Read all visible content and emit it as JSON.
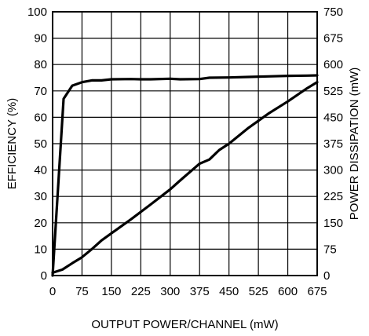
{
  "chart_data": {
    "type": "line",
    "title": "",
    "xlabel": "OUTPUT POWER/CHANNEL (mW)",
    "ylabel": "EFFICIENCY (%)",
    "y2label": "POWER DISSIPATION (mW)",
    "xlim": [
      0,
      675
    ],
    "ylim": [
      0,
      100
    ],
    "y2lim": [
      0,
      750
    ],
    "grid": true,
    "xticks": [
      "0",
      "75",
      "150",
      "225",
      "300",
      "375",
      "450",
      "525",
      "600",
      "675"
    ],
    "yticks": [
      "0",
      "10",
      "20",
      "30",
      "40",
      "50",
      "60",
      "70",
      "80",
      "90",
      "100"
    ],
    "y2ticks": [
      "0",
      "75",
      "150",
      "225",
      "300",
      "375",
      "450",
      "525",
      "600",
      "675",
      "750"
    ],
    "series": [
      {
        "axis": "left",
        "x": [
          0,
          28,
          50,
          75,
          100,
          125,
          150,
          200,
          225,
          250,
          300,
          325,
          375,
          400,
          450,
          500,
          550,
          600,
          650,
          675
        ],
        "y": [
          0,
          67,
          72,
          73.3,
          74,
          74,
          74.4,
          74.5,
          74.4,
          74.4,
          74.6,
          74.4,
          74.5,
          75,
          75.1,
          75.3,
          75.5,
          75.7,
          75.8,
          75.9
        ]
      },
      {
        "axis": "right",
        "x": [
          0,
          25,
          50,
          75,
          100,
          125,
          150,
          200,
          250,
          300,
          325,
          375,
          400,
          425,
          450,
          500,
          550,
          600,
          650,
          675
        ],
        "y": [
          8,
          17,
          35,
          52,
          75,
          100,
          120,
          160,
          202,
          245,
          270,
          318,
          330,
          357,
          375,
          420,
          460,
          495,
          533,
          550
        ]
      }
    ]
  }
}
